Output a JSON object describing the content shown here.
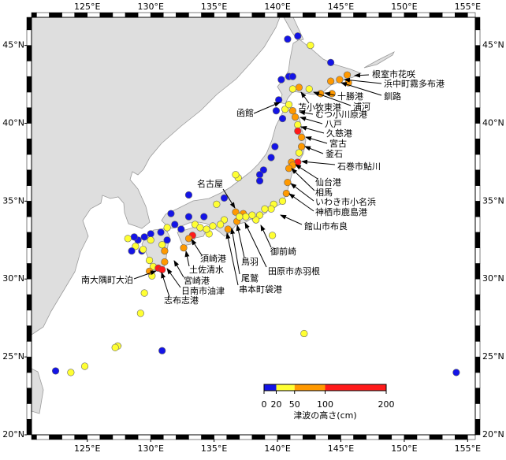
{
  "map": {
    "lonlim": [
      120.6,
      155.6
    ],
    "latlim": [
      20,
      46.8
    ],
    "lon_ticks": [
      {
        "value": 125,
        "label": "125°E"
      },
      {
        "value": 130,
        "label": "130°E"
      },
      {
        "value": 135,
        "label": "135°E"
      },
      {
        "value": 140,
        "label": "140°E"
      },
      {
        "value": 145,
        "label": "145°E"
      },
      {
        "value": 150,
        "label": "150°E"
      },
      {
        "value": 155,
        "label": "155°E"
      }
    ],
    "lat_ticks": [
      {
        "value": 20,
        "label": "20°N"
      },
      {
        "value": 25,
        "label": "25°N"
      },
      {
        "value": 30,
        "label": "30°N"
      },
      {
        "value": 35,
        "label": "35°N"
      },
      {
        "value": 40,
        "label": "40°N"
      },
      {
        "value": 45,
        "label": "45°N"
      }
    ],
    "points": {
      "lon": [
        141.6,
        140.8,
        142.6,
        144.2,
        145.5,
        144.9,
        145.6,
        144.2,
        144.3,
        143.4,
        142.5,
        141.7,
        141.2,
        140.9,
        141.2,
        140.3,
        140.1,
        139.9,
        140.6,
        140.9,
        141.2,
        140.4,
        141.4,
        141.6,
        141.6,
        141.9,
        141.9,
        141.7,
        141.6,
        141.1,
        141.2,
        140.9,
        140.8,
        140.7,
        140.4,
        139.7,
        139.5,
        139.0,
        138.6,
        138.3,
        138.0,
        139.6,
        139.8,
        139.5,
        138.9,
        138.6,
        138.6,
        136.9,
        136.7,
        135.8,
        135.2,
        133.0,
        137.3,
        136.8,
        136.1,
        136.7,
        137.5,
        137.0,
        135.8,
        135.5,
        134.9,
        134.6,
        134.4,
        133.5,
        133.3,
        133.0,
        132.6,
        134.2,
        133.9,
        131.6,
        132.4,
        133.0,
        131.9,
        131.3,
        131.3,
        130.8,
        130.0,
        129.5,
        129.0,
        129.3,
        130.0,
        129.4,
        128.7,
        128.8,
        128.2,
        128.5,
        129.9,
        130.2,
        130.6,
        130.9,
        131.1,
        131.1,
        130.9,
        130.1,
        129.9,
        129.5,
        129.2,
        127.4,
        127.2,
        130.9,
        124.8,
        123.7,
        122.5,
        142.1,
        154.1
      ],
      "lat": [
        45.6,
        45.4,
        45.0,
        43.9,
        43.1,
        42.8,
        42.6,
        42.7,
        41.9,
        41.9,
        42.2,
        42.3,
        42.2,
        43.0,
        43.0,
        42.8,
        41.5,
        40.8,
        40.9,
        41.2,
        40.8,
        40.3,
        40.4,
        39.9,
        39.5,
        39.1,
        38.5,
        38.1,
        37.5,
        37.5,
        37.3,
        37.1,
        36.2,
        35.5,
        35.0,
        34.8,
        34.5,
        34.5,
        34.1,
        33.8,
        34.1,
        32.8,
        38.5,
        37.8,
        37.0,
        36.7,
        36.3,
        36.5,
        36.7,
        35.2,
        34.8,
        35.4,
        34.2,
        33.7,
        33.2,
        34.3,
        34.0,
        34.0,
        33.8,
        33.5,
        33.4,
        32.9,
        33.2,
        33.5,
        32.8,
        32.6,
        32.0,
        34.0,
        33.3,
        34.2,
        33.2,
        34.0,
        33.5,
        33.3,
        32.5,
        33.0,
        32.9,
        32.7,
        32.5,
        31.8,
        32.5,
        31.9,
        32.7,
        32.1,
        32.6,
        31.8,
        31.2,
        30.8,
        30.7,
        30.6,
        31.1,
        31.8,
        32.2,
        30.2,
        30.5,
        29.1,
        27.8,
        25.7,
        25.6,
        25.4,
        24.4,
        24.0,
        24.1,
        26.5,
        24.0
      ],
      "height": [
        10,
        10,
        35,
        10,
        75,
        75,
        75,
        75,
        75,
        75,
        35,
        75,
        35,
        10,
        10,
        10,
        10,
        10,
        35,
        35,
        75,
        10,
        75,
        35,
        150,
        75,
        75,
        35,
        150,
        75,
        75,
        75,
        75,
        75,
        35,
        35,
        35,
        35,
        35,
        35,
        35,
        35,
        10,
        10,
        10,
        10,
        10,
        35,
        35,
        10,
        35,
        10,
        75,
        75,
        75,
        75,
        35,
        35,
        35,
        35,
        35,
        35,
        35,
        35,
        150,
        75,
        75,
        10,
        35,
        10,
        10,
        10,
        10,
        35,
        10,
        10,
        10,
        10,
        10,
        10,
        35,
        35,
        10,
        35,
        35,
        10,
        35,
        35,
        150,
        150,
        75,
        75,
        35,
        35,
        75,
        35,
        35,
        35,
        35,
        10,
        35,
        35,
        10,
        35,
        10
      ]
    },
    "labels": [
      "根室市花咲",
      "浜中町霧多布港",
      "釧路",
      "十勝港",
      "浦河",
      "苫小牧東港",
      "むつ小川原港",
      "函館",
      "八戸",
      "久慈港",
      "宮古",
      "釜石",
      "石巻市鮎川",
      "仙台港",
      "相馬",
      "いわき市小名浜",
      "神栖市鹿島港",
      "館山市布良",
      "名古屋",
      "御前崎",
      "鳥羽",
      "田原市赤羽根",
      "尾鷲",
      "串本町袋港",
      "須崎港",
      "土佐清水",
      "宮崎港",
      "日南市油津",
      "志布志港",
      "南大隅町大泊"
    ],
    "colorbar": {
      "bounds": [
        0,
        20,
        50,
        100,
        200
      ],
      "colors": [
        "#1414e6",
        "#ffff33",
        "#ff9900",
        "#ff1a1a"
      ],
      "label": "津波の高さ(cm)"
    }
  }
}
